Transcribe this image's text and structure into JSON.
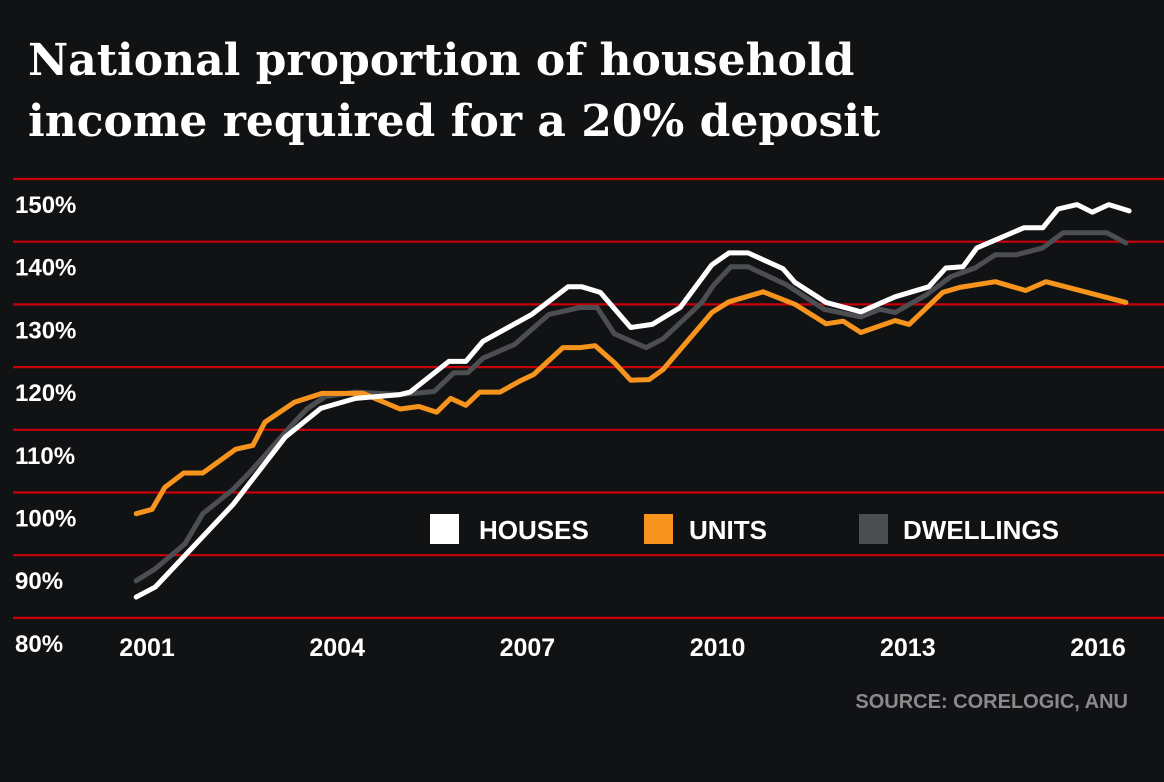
{
  "chart_data": {
    "type": "line",
    "title": [
      "National proportion of household",
      "income required for a 20% deposit"
    ],
    "source": "SOURCE: CORELOGIC, ANU",
    "y_ticks": [
      "150%",
      "140%",
      "130%",
      "120%",
      "110%",
      "100%",
      "90%",
      "80%"
    ],
    "y_tick_values": [
      150,
      140,
      130,
      120,
      110,
      100,
      90,
      80
    ],
    "x_ticks": [
      "2001",
      "2004",
      "2007",
      "2010",
      "2013",
      "2016"
    ],
    "x_tick_values": [
      2001,
      2004,
      2007,
      2010,
      2013,
      2016
    ],
    "ylim": [
      80,
      150
    ],
    "grid": true,
    "legend_placement": "bottom-center",
    "colors": {
      "background": "#111214",
      "grid": "#c8000a",
      "HOUSES": "#ffffff",
      "UNITS": "#f7941d",
      "DWELLINGS": "#4d4e52"
    },
    "series": [
      {
        "name": "HOUSES",
        "x": [
          2000.83,
          2001.13,
          2002.36,
          2003.18,
          2003.74,
          2004.29,
          2004.99,
          2005.15,
          2005.76,
          2006.03,
          2006.3,
          2007.07,
          2007.37,
          2007.64,
          2007.86,
          2008.15,
          2008.63,
          2008.97,
          2009.41,
          2009.91,
          2010.18,
          2010.48,
          2011.03,
          2011.22,
          2011.71,
          2012.26,
          2012.8,
          2013.33,
          2013.6,
          2013.87,
          2014.09,
          2014.83,
          2015.13,
          2015.37,
          2015.67,
          2015.91,
          2016.17,
          2016.49
        ],
        "y": [
          87.3,
          88.9,
          102.1,
          112.8,
          117.4,
          119.0,
          119.6,
          120.0,
          124.9,
          124.9,
          128.1,
          132.4,
          134.7,
          136.8,
          136.8,
          135.9,
          130.3,
          130.8,
          133.5,
          140.3,
          142.2,
          142.2,
          139.7,
          137.5,
          134.3,
          132.8,
          135.2,
          136.8,
          139.8,
          140.0,
          143.0,
          146.2,
          146.2,
          149.2,
          149.9,
          148.7,
          149.9,
          148.9
        ]
      },
      {
        "name": "UNITS",
        "x": [
          2000.83,
          2001.08,
          2001.28,
          2001.58,
          2001.88,
          2002.4,
          2002.67,
          2002.86,
          2003.33,
          2003.76,
          2004.41,
          2004.99,
          2005.29,
          2005.57,
          2005.79,
          2006.03,
          2006.25,
          2006.57,
          2006.87,
          2007.1,
          2007.56,
          2007.83,
          2008.07,
          2008.37,
          2008.63,
          2008.92,
          2009.14,
          2009.64,
          2009.91,
          2010.18,
          2010.72,
          2011.22,
          2011.71,
          2011.98,
          2012.26,
          2012.8,
          2013.02,
          2013.55,
          2013.82,
          2014.38,
          2014.86,
          2015.18,
          2016.44
        ],
        "y": [
          100.6,
          101.3,
          104.8,
          107.1,
          107.1,
          110.9,
          111.5,
          115.2,
          118.4,
          119.8,
          119.8,
          117.3,
          117.7,
          116.8,
          119.0,
          117.9,
          120.0,
          120.0,
          121.7,
          122.8,
          127.1,
          127.1,
          127.4,
          124.7,
          121.9,
          122.0,
          123.6,
          129.5,
          132.7,
          134.4,
          136.0,
          134.0,
          130.9,
          131.3,
          129.5,
          131.4,
          130.8,
          135.9,
          136.7,
          137.6,
          136.2,
          137.6,
          134.3
        ]
      },
      {
        "name": "DWELLINGS",
        "x": [
          2000.83,
          2001.13,
          2001.6,
          2001.88,
          2002.36,
          2002.62,
          2003.26,
          2003.52,
          2003.81,
          2004.29,
          2004.99,
          2005.53,
          2005.84,
          2006.06,
          2006.3,
          2006.8,
          2007.34,
          2007.83,
          2008.1,
          2008.37,
          2008.87,
          2009.14,
          2009.75,
          2009.94,
          2010.21,
          2010.48,
          2011.09,
          2011.68,
          2012.26,
          2012.56,
          2012.8,
          2013.29,
          2013.68,
          2014.06,
          2014.38,
          2014.71,
          2015.13,
          2015.45,
          2016.14,
          2016.44
        ],
        "y": [
          89.9,
          91.8,
          95.8,
          100.6,
          104.5,
          107.2,
          114.5,
          117.3,
          119.3,
          120.0,
          119.6,
          120.1,
          123.1,
          123.1,
          125.4,
          127.6,
          132.4,
          133.5,
          133.5,
          129.3,
          127.1,
          128.5,
          134.3,
          137.1,
          140.0,
          140.0,
          137.1,
          133.2,
          132.0,
          133.2,
          132.7,
          135.5,
          138.4,
          139.8,
          141.9,
          141.9,
          143.0,
          145.4,
          145.4,
          143.8
        ]
      }
    ]
  }
}
